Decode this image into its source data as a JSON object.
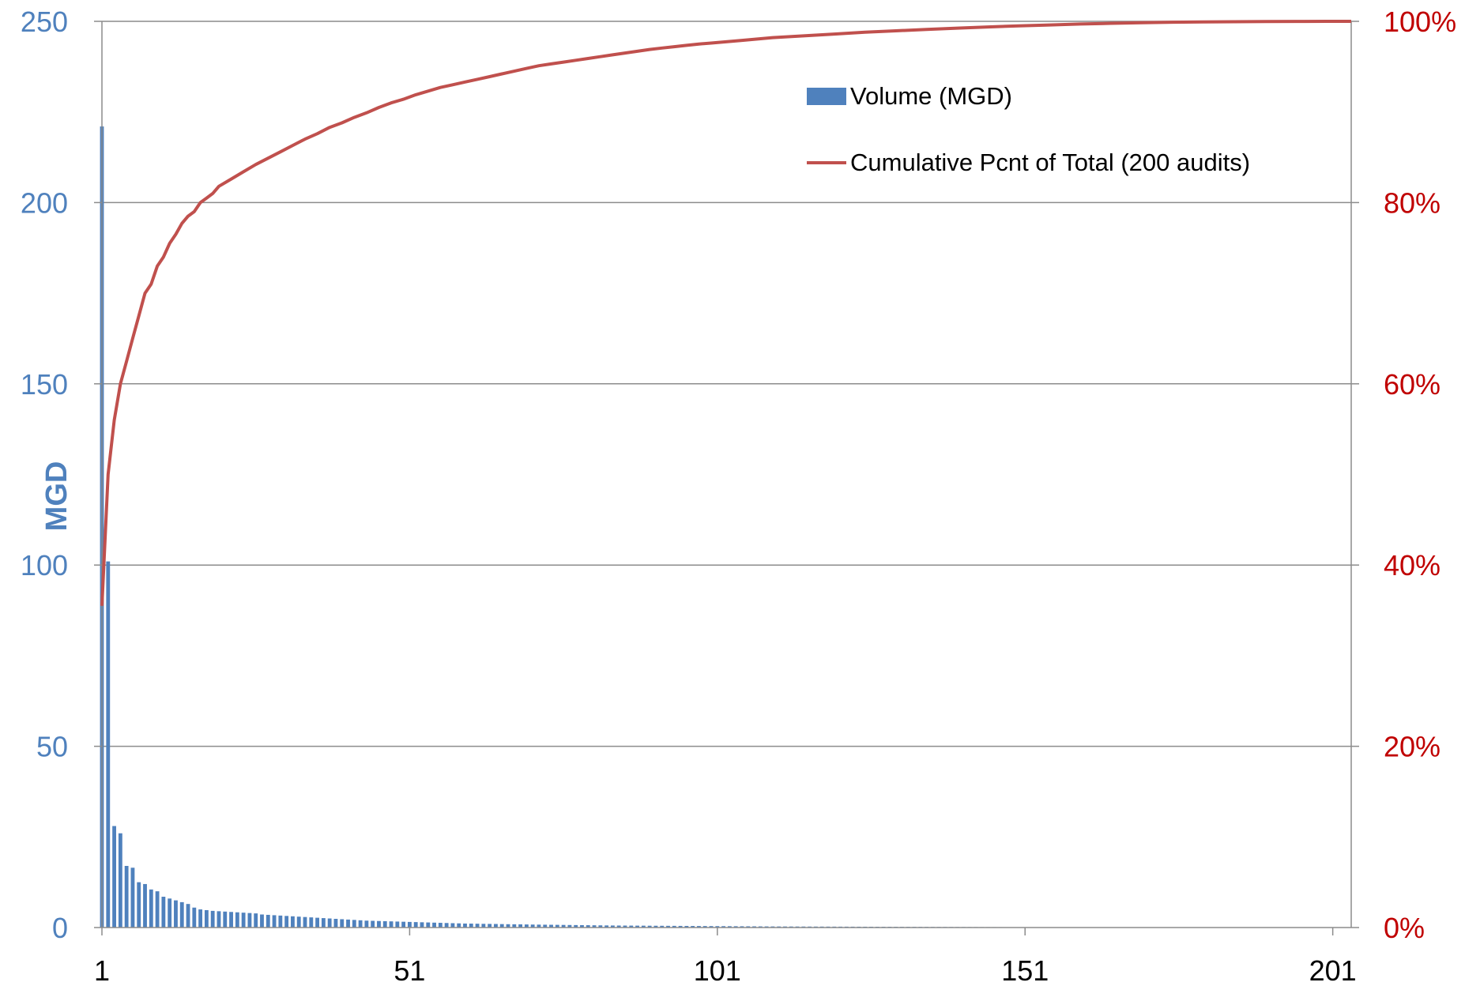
{
  "chart_data": {
    "type": "bar",
    "ylabel": "MGD",
    "ylim": [
      0,
      250
    ],
    "y2lim": [
      0,
      1
    ],
    "yticks": [
      0,
      50,
      100,
      150,
      200,
      250
    ],
    "yticks_labels": [
      "0",
      "50",
      "100",
      "150",
      "200",
      "250"
    ],
    "y2ticks": [
      0,
      0.2,
      0.4,
      0.6,
      0.8,
      1.0
    ],
    "y2ticks_labels": [
      "0%",
      "20%",
      "40%",
      "60%",
      "80%",
      "100%"
    ],
    "xlim": [
      1,
      204
    ],
    "xticks": [
      1,
      51,
      101,
      151,
      201
    ],
    "xticks_labels": [
      "1",
      "51",
      "101",
      "151",
      "201"
    ],
    "grid": true,
    "legend_position": "top-right",
    "colors": {
      "bar": "#4f81bd",
      "line": "#c0504d",
      "left_axis": "#4f81bd",
      "right_axis": "#c00000"
    },
    "series": [
      {
        "name": "Volume (MGD)",
        "type": "bar",
        "axis": "left",
        "values": [
          221,
          101,
          28,
          26,
          17,
          16.5,
          12.5,
          12,
          10.5,
          10,
          8.5,
          8,
          7.5,
          7,
          6.5,
          5.5,
          5,
          4.8,
          4.6,
          4.5,
          4.4,
          4.3,
          4.2,
          4.1,
          4,
          3.9,
          3.6,
          3.5,
          3.4,
          3.3,
          3.2,
          3.1,
          3,
          2.9,
          2.8,
          2.7,
          2.6,
          2.5,
          2.4,
          2.3,
          2.2,
          2.1,
          2,
          1.9,
          1.85,
          1.8,
          1.75,
          1.7,
          1.65,
          1.6,
          1.55,
          1.5,
          1.45,
          1.4,
          1.35,
          1.3,
          1.25,
          1.2,
          1.15,
          1.1,
          1.08,
          1.05,
          1.02,
          1,
          0.98,
          0.95,
          0.92,
          0.9,
          0.88,
          0.85,
          0.82,
          0.8,
          0.78,
          0.76,
          0.74,
          0.72,
          0.7,
          0.68,
          0.66,
          0.64,
          0.62,
          0.6,
          0.58,
          0.56,
          0.55,
          0.54,
          0.53,
          0.52,
          0.51,
          0.5,
          0.49,
          0.48,
          0.47,
          0.46,
          0.45,
          0.44,
          0.43,
          0.42,
          0.41,
          0.4,
          0.39,
          0.38,
          0.37,
          0.36,
          0.35,
          0.34,
          0.33,
          0.32,
          0.31,
          0.3,
          0.295,
          0.29,
          0.285,
          0.28,
          0.275,
          0.27,
          0.265,
          0.26,
          0.255,
          0.25,
          0.245,
          0.24,
          0.235,
          0.23,
          0.225,
          0.22,
          0.215,
          0.21,
          0.205,
          0.2,
          0.195,
          0.19,
          0.185,
          0.18,
          0.175,
          0.17,
          0.165,
          0.16,
          0.155,
          0.15,
          0.145,
          0.14,
          0.135,
          0.13,
          0.125,
          0.12,
          0.115,
          0.11,
          0.105,
          0.1,
          0.098,
          0.096,
          0.094,
          0.092,
          0.09,
          0.088,
          0.086,
          0.084,
          0.082,
          0.08,
          0.078,
          0.076,
          0.074,
          0.072,
          0.07,
          0.068,
          0.066,
          0.064,
          0.062,
          0.06,
          0.058,
          0.056,
          0.054,
          0.052,
          0.05,
          0.048,
          0.046,
          0.044,
          0.042,
          0.04,
          0.038,
          0.036,
          0.034,
          0.032,
          0.03,
          0.028,
          0.026,
          0.024,
          0.022,
          0.02,
          0.019,
          0.018,
          0.017,
          0.016,
          0.015,
          0.014,
          0.013,
          0.012,
          0.011,
          0.01
        ]
      },
      {
        "name": "Cumulative Pcnt of Total (200 audits)",
        "type": "line",
        "axis": "right",
        "x": [
          1,
          2,
          3,
          4,
          5,
          6,
          7,
          8,
          9,
          10,
          11,
          12,
          13,
          14,
          15,
          16,
          17,
          18,
          19,
          20,
          22,
          24,
          26,
          28,
          30,
          32,
          34,
          36,
          38,
          40,
          42,
          44,
          46,
          48,
          50,
          52,
          54,
          56,
          58,
          60,
          62,
          64,
          66,
          68,
          70,
          72,
          74,
          76,
          78,
          80,
          82,
          84,
          86,
          88,
          90,
          92,
          94,
          96,
          98,
          100,
          105,
          110,
          115,
          120,
          125,
          130,
          135,
          140,
          145,
          150,
          155,
          160,
          165,
          170,
          175,
          180,
          185,
          190,
          195,
          200,
          204
        ],
        "values": [
          0.355,
          0.5,
          0.56,
          0.6,
          0.625,
          0.65,
          0.675,
          0.7,
          0.71,
          0.73,
          0.74,
          0.755,
          0.765,
          0.777,
          0.785,
          0.79,
          0.8,
          0.805,
          0.81,
          0.818,
          0.826,
          0.834,
          0.842,
          0.849,
          0.856,
          0.863,
          0.87,
          0.876,
          0.883,
          0.888,
          0.894,
          0.899,
          0.905,
          0.91,
          0.914,
          0.919,
          0.923,
          0.927,
          0.93,
          0.933,
          0.936,
          0.939,
          0.942,
          0.945,
          0.948,
          0.951,
          0.953,
          0.955,
          0.957,
          0.959,
          0.961,
          0.963,
          0.965,
          0.967,
          0.969,
          0.9705,
          0.972,
          0.9735,
          0.975,
          0.976,
          0.979,
          0.982,
          0.984,
          0.986,
          0.988,
          0.9895,
          0.991,
          0.9925,
          0.9938,
          0.995,
          0.996,
          0.997,
          0.9978,
          0.9985,
          0.999,
          0.9993,
          0.9996,
          0.9998,
          0.9999,
          1.0,
          1.0
        ]
      }
    ]
  }
}
